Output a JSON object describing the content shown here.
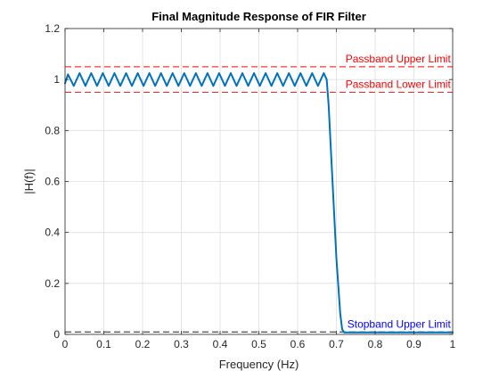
{
  "chart_data": {
    "type": "line",
    "title": "Final Magnitude Response of FIR Filter",
    "xlabel": "Frequency (Hz)",
    "ylabel": "|H(f)|",
    "xlim": [
      0,
      1
    ],
    "ylim": [
      0,
      1.2
    ],
    "x_ticks": [
      0,
      0.1,
      0.2,
      0.3,
      0.4,
      0.5,
      0.6,
      0.7,
      0.8,
      0.9,
      1
    ],
    "x_tick_labels": [
      "0",
      "0.1",
      "0.2",
      "0.3",
      "0.4",
      "0.5",
      "0.6",
      "0.7",
      "0.8",
      "0.9",
      "1"
    ],
    "y_ticks": [
      0,
      0.2,
      0.4,
      0.6,
      0.8,
      1,
      1.2
    ],
    "y_tick_labels": [
      "0",
      "0.2",
      "0.4",
      "0.6",
      "0.8",
      "1",
      "1.2"
    ],
    "grid": true,
    "series": [
      {
        "color": "#0072BD",
        "x": [
          0,
          0.0075,
          0.0225,
          0.0375,
          0.0525,
          0.0675,
          0.0825,
          0.0975,
          0.1125,
          0.1275,
          0.1425,
          0.1575,
          0.1725,
          0.1875,
          0.2025,
          0.2175,
          0.2325,
          0.2475,
          0.2625,
          0.2775,
          0.2925,
          0.3075,
          0.3225,
          0.3375,
          0.3525,
          0.3675,
          0.3825,
          0.3975,
          0.4125,
          0.4275,
          0.4425,
          0.4575,
          0.4725,
          0.4875,
          0.5025,
          0.5175,
          0.5325,
          0.5475,
          0.5625,
          0.5775,
          0.5925,
          0.6075,
          0.6225,
          0.6375,
          0.6525,
          0.6675,
          0.675,
          0.68,
          0.69,
          0.7,
          0.71,
          0.715,
          0.72,
          0.73,
          0.75,
          0.8,
          0.85,
          0.9,
          0.95,
          1.0
        ],
        "y": [
          0.985,
          1.02,
          0.975,
          1.025,
          0.975,
          1.025,
          0.975,
          1.025,
          0.975,
          1.025,
          0.975,
          1.025,
          0.975,
          1.025,
          0.975,
          1.025,
          0.975,
          1.025,
          0.975,
          1.025,
          0.975,
          1.025,
          0.975,
          1.025,
          0.975,
          1.025,
          0.975,
          1.025,
          0.975,
          1.025,
          0.975,
          1.025,
          0.975,
          1.025,
          0.975,
          1.025,
          0.975,
          1.025,
          0.975,
          1.025,
          0.975,
          1.025,
          0.975,
          1.025,
          0.975,
          1.025,
          1.0,
          0.9,
          0.6,
          0.3,
          0.08,
          0.02,
          0.008,
          0.008,
          0.008,
          0.008,
          0.008,
          0.008,
          0.008,
          0.008
        ]
      }
    ],
    "reference_lines": [
      {
        "y": 1.05,
        "color": "#FF0000",
        "style": "dashed"
      },
      {
        "y": 0.95,
        "color": "#FF0000",
        "style": "dashed"
      },
      {
        "y": 0.01,
        "color": "#000000",
        "style": "dashed"
      }
    ],
    "annotations": [
      {
        "text": "Passband Upper Limit",
        "x": 0.995,
        "y": 1.06,
        "color": "#FF0000",
        "anchor": "end"
      },
      {
        "text": "Passband Lower Limit",
        "x": 0.995,
        "y": 0.96,
        "color": "#FF0000",
        "anchor": "end"
      },
      {
        "text": "Stopband Upper Limit",
        "x": 0.995,
        "y": 0.02,
        "color": "#0000FF",
        "anchor": "end"
      }
    ]
  }
}
